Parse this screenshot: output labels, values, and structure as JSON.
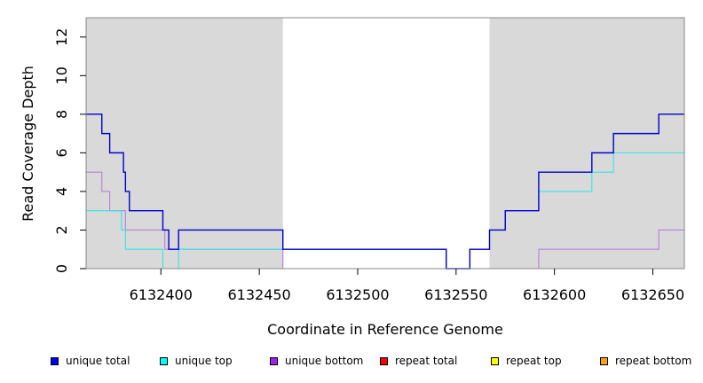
{
  "chart_data": {
    "type": "line",
    "xlabel": "Coordinate in Reference Genome",
    "ylabel": "Read Coverage Depth",
    "xlim": [
      6132362,
      6132666
    ],
    "ylim": [
      0,
      13
    ],
    "x_ticks": [
      6132400,
      6132450,
      6132500,
      6132550,
      6132600,
      6132650
    ],
    "y_ticks": [
      0,
      2,
      4,
      6,
      8,
      10,
      12
    ],
    "shaded_regions": [
      [
        6132362,
        6132462
      ],
      [
        6132567,
        6132666
      ]
    ],
    "shade_color": "#d9d9d9",
    "series": [
      {
        "name": "unique bottom",
        "color": "#b57edc",
        "step": true,
        "x": [
          6132362,
          6132370,
          6132374,
          6132382,
          6132402,
          6132462,
          6132592,
          6132653,
          6132666
        ],
        "y": [
          5,
          4,
          3,
          2,
          1,
          0,
          1,
          2,
          2
        ]
      },
      {
        "name": "unique top",
        "color": "#2ee6e6",
        "step": true,
        "x": [
          6132362,
          6132380,
          6132382,
          6132401,
          6132409,
          6132545,
          6132557,
          6132567,
          6132575,
          6132592,
          6132619,
          6132630,
          6132666
        ],
        "y": [
          3,
          2,
          1,
          0,
          1,
          0,
          1,
          2,
          3,
          4,
          5,
          6,
          6
        ]
      },
      {
        "name": "unique total",
        "color": "#0000cc",
        "step": true,
        "x": [
          6132362,
          6132370,
          6132374,
          6132381,
          6132382,
          6132384,
          6132401,
          6132404,
          6132409,
          6132462,
          6132545,
          6132557,
          6132567,
          6132575,
          6132592,
          6132619,
          6132630,
          6132653,
          6132666
        ],
        "y": [
          8,
          7,
          6,
          5,
          4,
          3,
          2,
          1,
          2,
          1,
          0,
          1,
          2,
          3,
          5,
          6,
          7,
          8,
          8
        ]
      },
      {
        "name": "repeat total",
        "color": "#ff0000",
        "step": true,
        "x": [
          6132362,
          6132666
        ],
        "y": [
          0,
          0
        ]
      },
      {
        "name": "repeat top",
        "color": "#ffff00",
        "step": true,
        "x": [
          6132362,
          6132666
        ],
        "y": [
          0,
          0
        ]
      },
      {
        "name": "repeat bottom",
        "color": "#ff8c00",
        "step": true,
        "x": [
          6132362,
          6132666
        ],
        "y": [
          0,
          0
        ]
      }
    ],
    "legend": [
      {
        "label": "unique total",
        "color": "#0000ff"
      },
      {
        "label": "unique top",
        "color": "#00ffff"
      },
      {
        "label": "unique bottom",
        "color": "#a020f0"
      },
      {
        "label": "repeat total",
        "color": "#ff0000"
      },
      {
        "label": "repeat top",
        "color": "#ffff00"
      },
      {
        "label": "repeat bottom",
        "color": "#ffa500"
      }
    ]
  }
}
